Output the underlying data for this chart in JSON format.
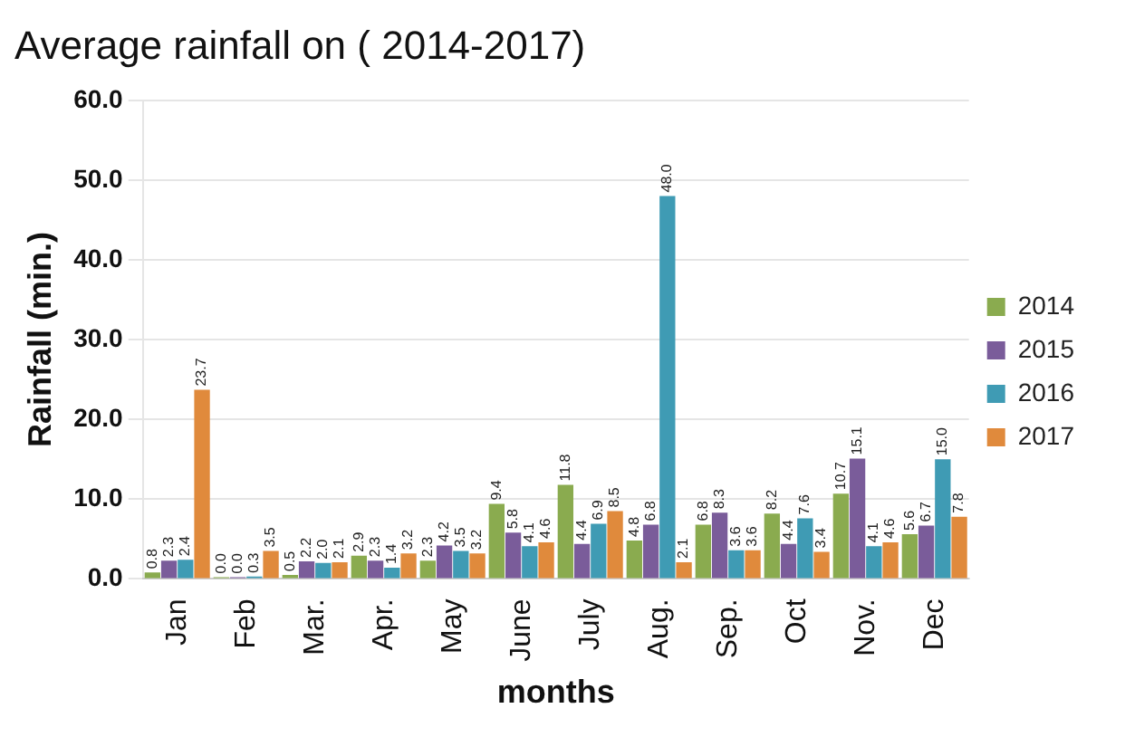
{
  "chart_data": {
    "type": "bar",
    "title": "Average rainfall on ( 2014-2017)",
    "xlabel": "months",
    "ylabel": "Rainfall (min.)",
    "categories": [
      "Jan",
      "Feb",
      "Mar.",
      "Apr.",
      "May",
      "June",
      "July",
      "Aug.",
      "Sep.",
      "Oct",
      "Nov.",
      "Dec"
    ],
    "series": [
      {
        "name": "2014",
        "color": "#8aab4f",
        "values": [
          0.8,
          0.0,
          0.5,
          2.9,
          2.3,
          9.4,
          11.8,
          4.8,
          6.8,
          8.2,
          10.7,
          5.6
        ],
        "value_labels": [
          "0.8",
          "0.0",
          "0.5",
          "2.9",
          "2.3",
          "9.4",
          "11.8",
          "4.8",
          "6.8",
          "8.2",
          "10.7",
          "5.6"
        ]
      },
      {
        "name": "2015",
        "color": "#7a5c9a",
        "values": [
          2.3,
          0.0,
          2.2,
          2.3,
          4.2,
          5.8,
          4.4,
          6.8,
          8.3,
          4.4,
          15.1,
          6.7
        ],
        "value_labels": [
          "2.3",
          "0.0",
          "2.2",
          "2.3",
          "4.2",
          "5.8",
          "4.4",
          "6.8",
          "8.3",
          "4.4",
          "15.1",
          "6.7"
        ]
      },
      {
        "name": "2016",
        "color": "#3f9bb4",
        "values": [
          2.4,
          0.3,
          2.0,
          1.4,
          3.5,
          4.1,
          6.9,
          48.0,
          3.6,
          7.6,
          4.1,
          15.0
        ],
        "value_labels": [
          "2.4",
          "0.3",
          "2.0",
          "1.4",
          "3.5",
          "4.1",
          "6.9",
          "48.0",
          "3.6",
          "7.6",
          "4.1",
          "15.0"
        ]
      },
      {
        "name": "2017",
        "color": "#e08a3c",
        "values": [
          23.7,
          3.5,
          2.1,
          3.2,
          3.2,
          4.6,
          8.5,
          2.1,
          3.6,
          3.4,
          4.6,
          7.8
        ],
        "value_labels": [
          "23.7",
          "3.5",
          "2.1",
          "3.2",
          "3.2",
          "4.6",
          "8.5",
          "2.1",
          "3.6",
          "3.4",
          "4.6",
          "7.8"
        ]
      }
    ],
    "ylim": [
      0,
      60
    ],
    "yticks": [
      {
        "value": 0,
        "label": "0.0"
      },
      {
        "value": 10,
        "label": "10.0"
      },
      {
        "value": 20,
        "label": "20.0"
      },
      {
        "value": 30,
        "label": "30.0"
      },
      {
        "value": 40,
        "label": "40.0"
      },
      {
        "value": 50,
        "label": "50.0"
      },
      {
        "value": 60,
        "label": "60.0"
      }
    ],
    "grid": "y",
    "legend": "right"
  }
}
